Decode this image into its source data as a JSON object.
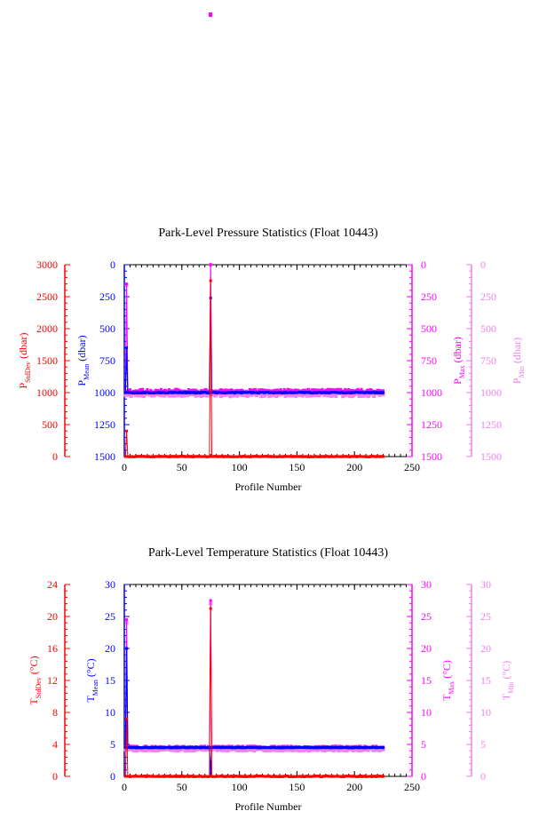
{
  "colors": {
    "stddev": "#ff0000",
    "mean": "#0000ff",
    "max": "#ff00ff",
    "min": "#ee82ee",
    "axis_black": "#000000"
  },
  "charts": {
    "pressure": {
      "title": "Park-Level Pressure Statistics (Float 10443)",
      "xlabel": "Profile Number",
      "axis_labels": {
        "stddev": {
          "main": "P",
          "sub": "StdDev",
          "unit": " (dbar)"
        },
        "mean": {
          "main": "P",
          "sub": "Mean",
          "unit": " (dbar)"
        },
        "max": {
          "main": "P",
          "sub": "Max",
          "unit": " (dbar)"
        },
        "min": {
          "main": "P",
          "sub": "Min",
          "unit": " (dbar)"
        }
      },
      "x_ticks": [
        "0",
        "50",
        "100",
        "150",
        "200",
        "250"
      ],
      "stddev_ticks": [
        "3000",
        "2500",
        "2000",
        "1500",
        "1000",
        "500",
        "0"
      ],
      "pressure_ticks": [
        "0",
        "250",
        "500",
        "750",
        "1000",
        "1250",
        "1500"
      ]
    },
    "temperature": {
      "title": "Park-Level Temperature Statistics (Float 10443)",
      "xlabel": "Profile Number",
      "axis_labels": {
        "stddev": {
          "main": "T",
          "sub": "StdDev",
          "unit": " (°C)"
        },
        "mean": {
          "main": "T",
          "sub": "Mean",
          "unit": " (°C)"
        },
        "max": {
          "main": "T",
          "sub": "Max",
          "unit": " (°C)"
        },
        "min": {
          "main": "T",
          "sub": "Min",
          "unit": " (°C)"
        }
      },
      "x_ticks": [
        "0",
        "50",
        "100",
        "150",
        "200",
        "250"
      ],
      "stddev_ticks": [
        "24",
        "20",
        "16",
        "12",
        "8",
        "4",
        "0"
      ],
      "temp_ticks": [
        "30",
        "25",
        "20",
        "15",
        "10",
        "5",
        "0"
      ]
    }
  },
  "chart_data": [
    {
      "type": "line",
      "title": "Park-Level Pressure Statistics (Float 10443)",
      "xlabel": "Profile Number",
      "xlim": [
        0,
        250
      ],
      "axes": {
        "stddev": {
          "label": "PStdDev (dbar)",
          "ylim": [
            0,
            3000
          ],
          "direction": "normal"
        },
        "mean": {
          "label": "PMean (dbar)",
          "ylim": [
            0,
            1500
          ],
          "direction": "inverted"
        },
        "max": {
          "label": "PMax (dbar)",
          "ylim": [
            0,
            1500
          ],
          "direction": "inverted"
        },
        "min": {
          "label": "PMin (dbar)",
          "ylim": [
            0,
            1500
          ],
          "direction": "inverted"
        }
      },
      "series": [
        {
          "name": "PMean",
          "axis": "mean",
          "x_range": [
            1,
            225
          ],
          "points": [
            [
              1,
              1000
            ],
            [
              2,
              650
            ],
            [
              3,
              1000
            ],
            [
              4,
              1000
            ],
            [
              5,
              1000
            ],
            [
              74,
              1000
            ],
            [
              75,
              260
            ],
            [
              76,
              1000
            ],
            [
              100,
              1000
            ],
            [
              150,
              1000
            ],
            [
              200,
              1000
            ],
            [
              225,
              1000
            ]
          ]
        },
        {
          "name": "PMax",
          "axis": "max",
          "x_range": [
            1,
            225
          ],
          "points": [
            [
              1,
              990
            ],
            [
              2,
              150
            ],
            [
              3,
              985
            ],
            [
              4,
              985
            ],
            [
              74,
              985
            ],
            [
              75,
              0
            ],
            [
              76,
              985
            ],
            [
              100,
              985
            ],
            [
              150,
              985
            ],
            [
              200,
              985
            ],
            [
              225,
              985
            ]
          ]
        },
        {
          "name": "PMin",
          "axis": "min",
          "x_range": [
            1,
            225
          ],
          "points": [
            [
              1,
              1020
            ],
            [
              2,
              160
            ],
            [
              3,
              1015
            ],
            [
              4,
              1015
            ],
            [
              74,
              1015
            ],
            [
              75,
              0
            ],
            [
              76,
              1015
            ],
            [
              100,
              1015
            ],
            [
              150,
              1015
            ],
            [
              200,
              1015
            ],
            [
              225,
              1015
            ]
          ]
        },
        {
          "name": "PStdDev",
          "axis": "stddev",
          "x_range": [
            1,
            225
          ],
          "points": [
            [
              1,
              0
            ],
            [
              2,
              400
            ],
            [
              3,
              0
            ],
            [
              74,
              0
            ],
            [
              75,
              2750
            ],
            [
              76,
              0
            ],
            [
              100,
              0
            ],
            [
              150,
              0
            ],
            [
              200,
              0
            ],
            [
              225,
              0
            ]
          ]
        }
      ]
    },
    {
      "type": "line",
      "title": "Park-Level Temperature Statistics (Float 10443)",
      "xlabel": "Profile Number",
      "xlim": [
        0,
        250
      ],
      "axes": {
        "stddev": {
          "label": "TStdDev (°C)",
          "ylim": [
            0,
            24
          ]
        },
        "mean": {
          "label": "TMean (°C)",
          "ylim": [
            0,
            30
          ]
        },
        "max": {
          "label": "TMax (°C)",
          "ylim": [
            0,
            30
          ]
        },
        "min": {
          "label": "TMin (°C)",
          "ylim": [
            0,
            30
          ]
        }
      },
      "series": [
        {
          "name": "TMean",
          "axis": "mean",
          "x_range": [
            1,
            225
          ],
          "points": [
            [
              1,
              4.5
            ],
            [
              2,
              20
            ],
            [
              3,
              4.5
            ],
            [
              74,
              4.5
            ],
            [
              75,
              0.5
            ],
            [
              76,
              4.5
            ],
            [
              100,
              4.5
            ],
            [
              150,
              4.5
            ],
            [
              200,
              4.5
            ],
            [
              225,
              4.5
            ]
          ]
        },
        {
          "name": "TMax",
          "axis": "max",
          "x_range": [
            1,
            225
          ],
          "points": [
            [
              1,
              4.6
            ],
            [
              2,
              24.5
            ],
            [
              3,
              4.6
            ],
            [
              74,
              4.6
            ],
            [
              75,
              27.5
            ],
            [
              76,
              4.6
            ],
            [
              100,
              4.6
            ],
            [
              150,
              4.6
            ],
            [
              200,
              4.6
            ],
            [
              225,
              4.6
            ]
          ]
        },
        {
          "name": "TMin",
          "axis": "min",
          "x_range": [
            1,
            225
          ],
          "points": [
            [
              1,
              4.2
            ],
            [
              2,
              24
            ],
            [
              3,
              4.2
            ],
            [
              74,
              4.2
            ],
            [
              75,
              27
            ],
            [
              76,
              4.2
            ],
            [
              100,
              4.2
            ],
            [
              150,
              4.2
            ],
            [
              200,
              4.2
            ],
            [
              225,
              4.2
            ]
          ]
        },
        {
          "name": "TStdDev",
          "axis": "stddev",
          "x_range": [
            1,
            225
          ],
          "points": [
            [
              1,
              0
            ],
            [
              2,
              7.2
            ],
            [
              3,
              0
            ],
            [
              74,
              0
            ],
            [
              75,
              21
            ],
            [
              76,
              0
            ],
            [
              100,
              0
            ],
            [
              150,
              0
            ],
            [
              200,
              0
            ],
            [
              225,
              0
            ]
          ]
        }
      ]
    }
  ]
}
